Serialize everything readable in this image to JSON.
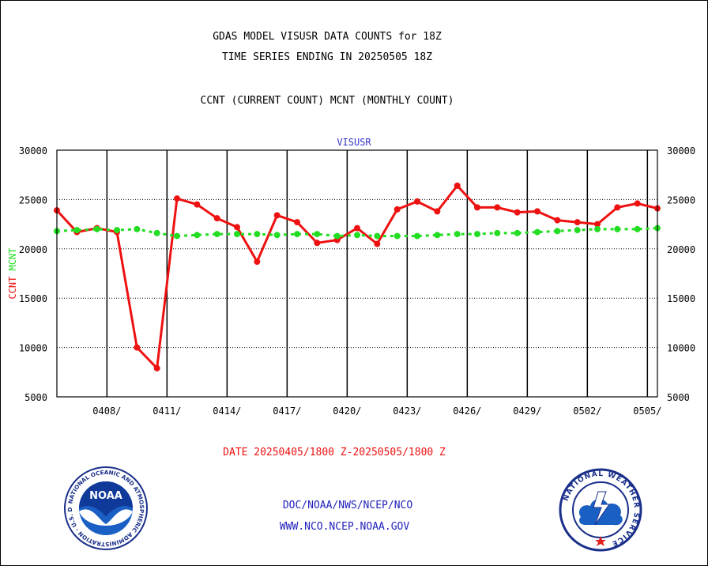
{
  "header": {
    "title_line1": "GDAS MODEL VISUSR DATA COUNTS for 18Z",
    "title_line2": "TIME SERIES ENDING IN 20250505 18Z",
    "subtitle": "CCNT (CURRENT COUNT) MCNT (MONTHLY COUNT)"
  },
  "footer": {
    "date_range": "DATE 20250405/1800 Z-20250505/1800 Z",
    "link1": "DOC/NOAA/NWS/NCEP/NCO",
    "link2": "WWW.NCO.NCEP.NOAA.GOV"
  },
  "colors": {
    "ccnt": "#ee1111",
    "mcnt": "#22dd22",
    "panel_label": "#3333cc",
    "footer_link": "#2222bb"
  },
  "logos": {
    "noaa": {
      "icon": "noaa-logo",
      "text": "NOAA",
      "ring_text": "NATIONAL OCEANIC AND ATMOSPHERIC ADMINISTRATION · U.S. DEPARTMENT OF COMMERCE"
    },
    "nws": {
      "icon": "nws-logo",
      "ring_text": "NATIONAL WEATHER SERVICE"
    }
  },
  "chart_data": {
    "type": "line",
    "panel_label": "VISUSR",
    "ylabel_left_parts": [
      "CCNT",
      "MCNT"
    ],
    "ylim": [
      5000,
      30000
    ],
    "yticks": [
      5000,
      10000,
      15000,
      20000,
      25000,
      30000
    ],
    "xlim": [
      0,
      30
    ],
    "xtick_labels": [
      "0408/",
      "0411/",
      "0414/",
      "0417/",
      "0420/",
      "0423/",
      "0426/",
      "0429/",
      "0502/",
      "0505/"
    ],
    "xtick_positions": [
      2.5,
      5.5,
      8.5,
      11.5,
      14.5,
      17.5,
      20.5,
      23.5,
      26.5,
      29.5
    ],
    "grid": true,
    "series": [
      {
        "name": "CCNT",
        "values": [
          23900,
          21700,
          22100,
          21700,
          10000,
          7900,
          25100,
          24500,
          23100,
          22200,
          18700,
          23400,
          22700,
          20600,
          20900,
          22100,
          20500,
          24000,
          24800,
          23800,
          26400,
          24200,
          24200,
          23700,
          23800,
          22900,
          22700,
          22500,
          24200,
          24600,
          24100
        ]
      },
      {
        "name": "MCNT",
        "values": [
          21800,
          21900,
          22000,
          21900,
          22000,
          21600,
          21300,
          21400,
          21500,
          21500,
          21500,
          21400,
          21500,
          21500,
          21300,
          21400,
          21300,
          21300,
          21300,
          21400,
          21500,
          21500,
          21600,
          21600,
          21700,
          21800,
          21900,
          22000,
          22000,
          22000,
          22100
        ]
      }
    ]
  }
}
